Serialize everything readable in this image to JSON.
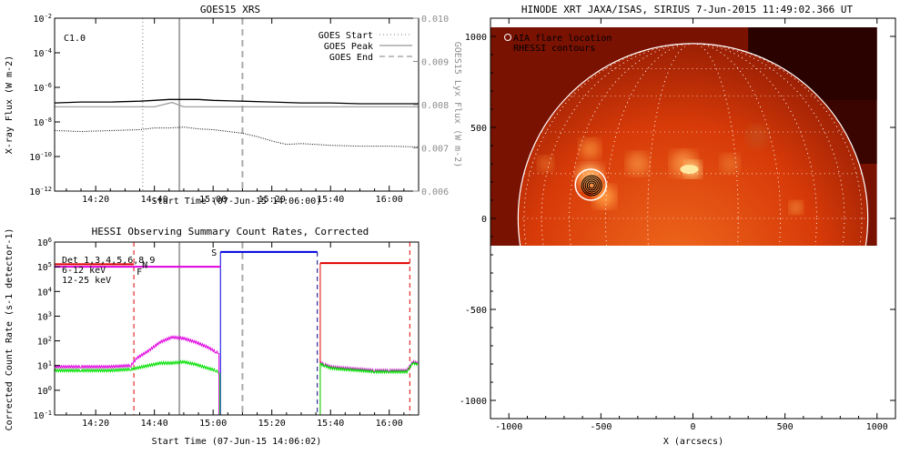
{
  "chart_data": [
    {
      "type": "line",
      "title": "GOES15 XRS",
      "xlabel": "Start Time (07-Jun-15 14:06:00)",
      "ylabel": "X-ray Flux (W m-2)",
      "ylabel_right": "GOES15 Lyx Flux (W m-2)",
      "class_label": "C1.0",
      "x_ticks": [
        "14:20",
        "14:40",
        "15:00",
        "15:20",
        "15:40",
        "16:00"
      ],
      "x_tick_minutes": [
        20,
        40,
        60,
        80,
        100,
        120
      ],
      "xlim_minutes": [
        6,
        130
      ],
      "y_ticks": [
        "10-2",
        "10-4",
        "10-6",
        "10-8",
        "10-10",
        "10-12"
      ],
      "y_tick_exp": [
        -2,
        -4,
        -6,
        -8,
        -10,
        -12
      ],
      "ylim_exp": [
        -12,
        -2
      ],
      "y2_ticks": [
        "0.010",
        "0.009",
        "0.008",
        "0.007",
        "0.006"
      ],
      "y2_tick_values": [
        0.01,
        0.009,
        0.008,
        0.007,
        0.006
      ],
      "y2lim": [
        0.006,
        0.01
      ],
      "legend": [
        {
          "label": "GOES Start",
          "style": "dotted",
          "color": "#a8a8a8"
        },
        {
          "label": "GOES Peak",
          "style": "solid",
          "color": "#a8a8a8"
        },
        {
          "label": "GOES End",
          "style": "dashed",
          "color": "#a8a8a8"
        }
      ],
      "event_lines_minutes": {
        "start": 36,
        "peak": 48.5,
        "end": 70
      },
      "series": [
        {
          "color": "#000000",
          "style": "solid",
          "x": [
            6,
            15,
            25,
            35,
            40,
            45,
            50,
            55,
            60,
            70,
            80,
            90,
            100,
            110,
            120,
            130
          ],
          "y": [
            -6.9,
            -6.85,
            -6.85,
            -6.8,
            -6.75,
            -6.7,
            -6.7,
            -6.7,
            -6.75,
            -6.8,
            -6.85,
            -6.9,
            -6.9,
            -6.95,
            -6.95,
            -6.95
          ]
        },
        {
          "color": "#a0a0a0",
          "style": "solid",
          "axis": "right",
          "x": [
            6,
            20,
            40,
            46,
            50,
            60,
            80,
            100,
            130
          ],
          "y": [
            0.00795,
            0.00795,
            0.00795,
            0.00805,
            0.00795,
            0.00795,
            0.00795,
            0.00795,
            0.00795
          ]
        },
        {
          "color": "#000000",
          "style": "dotted",
          "x": [
            6,
            15,
            25,
            35,
            40,
            45,
            50,
            55,
            60,
            70,
            75,
            80,
            85,
            90,
            95,
            100,
            110,
            120,
            130
          ],
          "y": [
            -8.5,
            -8.55,
            -8.5,
            -8.45,
            -8.35,
            -8.35,
            -8.3,
            -8.4,
            -8.45,
            -8.65,
            -8.85,
            -9.1,
            -9.3,
            -9.25,
            -9.3,
            -9.35,
            -9.4,
            -9.4,
            -9.45
          ]
        }
      ]
    },
    {
      "type": "line",
      "title": "HESSI Observing Summary Count Rates, Corrected",
      "xlabel": "Start Time (07-Jun-15 14:06:02)",
      "ylabel": "Corrected Count Rate (s-1 detector-1)",
      "x_ticks": [
        "14:20",
        "14:40",
        "15:00",
        "15:20",
        "15:40",
        "16:00"
      ],
      "x_tick_minutes": [
        20,
        40,
        60,
        80,
        100,
        120
      ],
      "xlim_minutes": [
        6,
        130
      ],
      "y_ticks": [
        "10-1",
        "100",
        "101",
        "102",
        "103",
        "104",
        "105",
        "106"
      ],
      "y_tick_exp": [
        -1,
        0,
        1,
        2,
        3,
        4,
        5,
        6
      ],
      "ylim_exp": [
        -1,
        6
      ],
      "legend": [
        {
          "label": "Det 1,3,4,5,6,8,9",
          "color": "#000000"
        },
        {
          "label": "6-12 keV",
          "color": "#e000e0"
        },
        {
          "label": "12-25 keV",
          "color": "#00e000"
        }
      ],
      "flag_labels": [
        {
          "text": "F",
          "color": "#e000e0"
        },
        {
          "text": "N",
          "color": "#e00000"
        },
        {
          "text": "S",
          "color": "#0000e0"
        }
      ],
      "event_lines_minutes": {
        "goes_peak": 48.5,
        "goes_end": 70
      },
      "night_lines_minutes": [
        33,
        127
      ],
      "saa_lines_minutes": [
        62.5,
        95.5
      ],
      "series": [
        {
          "name": "6-12 keV",
          "color": "#e000e0",
          "x": [
            6,
            15,
            25,
            32,
            34,
            38,
            42,
            46,
            50,
            54,
            58,
            61,
            62
          ],
          "y": [
            0.95,
            0.95,
            0.95,
            1.0,
            1.3,
            1.6,
            1.95,
            2.15,
            2.1,
            1.95,
            1.75,
            1.55,
            1.5
          ]
        },
        {
          "name": "12-25 keV",
          "color": "#00e000",
          "x": [
            6,
            15,
            25,
            32,
            36,
            42,
            46,
            50,
            54,
            58,
            61,
            62
          ],
          "y": [
            0.8,
            0.8,
            0.8,
            0.85,
            0.95,
            1.1,
            1.1,
            1.15,
            1.05,
            0.9,
            0.8,
            0.7
          ]
        },
        {
          "name": "6-12 keV",
          "color": "#e000e0",
          "x": [
            96.5,
            98,
            100,
            104,
            110,
            115,
            120,
            126,
            128,
            130
          ],
          "y": [
            1.1,
            1.05,
            0.95,
            0.9,
            0.85,
            0.8,
            0.8,
            0.8,
            1.15,
            1.1
          ]
        },
        {
          "name": "12-25 keV",
          "color": "#00e000",
          "x": [
            96.5,
            98,
            100,
            104,
            110,
            115,
            120,
            126,
            128,
            130
          ],
          "y": [
            1.05,
            1.0,
            0.9,
            0.85,
            0.8,
            0.75,
            0.75,
            0.75,
            1.1,
            1.05
          ]
        }
      ],
      "flag_bars": [
        {
          "text": "N",
          "color": "#e00000",
          "from": 6,
          "to": 33,
          "y": 5.1
        },
        {
          "text": "F",
          "color": "#e000e0",
          "from": 6,
          "to": 62.5,
          "y": 5.0
        },
        {
          "text": "S",
          "color": "#0000e0",
          "from": 62.5,
          "to": 95.5,
          "y": 5.6
        },
        {
          "text": "N",
          "color": "#e00000",
          "from": 96.5,
          "to": 127,
          "y": 5.15
        }
      ]
    },
    {
      "type": "heatmap",
      "title": "HINODE XRT JAXA/ISAS, SIRIUS  7-Jun-2015 11:49:02.366 UT",
      "xlabel": "X (arcsecs)",
      "ylabel": "",
      "x_ticks": [
        "-1000",
        "-500",
        "0",
        "500",
        "1000"
      ],
      "x_tick_values": [
        -1000,
        -500,
        0,
        500,
        1000
      ],
      "xlim": [
        -1100,
        1100
      ],
      "y_ticks": [
        "1000",
        "500",
        "0",
        "-500",
        "-1000"
      ],
      "y_tick_values": [
        1000,
        500,
        0,
        -500,
        -1000
      ],
      "ylim": [
        -1100,
        1100
      ],
      "legend": [
        {
          "label": "AIA flare location",
          "marker": "circle"
        },
        {
          "label": "RHESSI contours",
          "marker": "none"
        }
      ],
      "image_extent": {
        "x": [
          -1100,
          1000
        ],
        "y": [
          -150,
          1050
        ]
      },
      "limb_radius_arcsec": 950,
      "flare_location": {
        "x": -555,
        "y": 185
      },
      "colors": {
        "disk": "#d73a08",
        "dark": "#2a0300",
        "bright": "#ffe9a0"
      }
    }
  ]
}
